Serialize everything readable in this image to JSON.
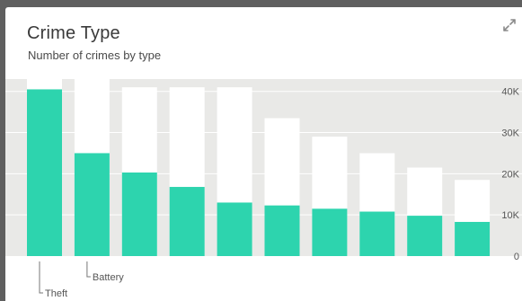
{
  "card": {
    "title": "Crime Type",
    "subtitle": "Number of crimes by type",
    "expand_icon": "expand-arrows-icon"
  },
  "chart_data": {
    "type": "bar",
    "title": "Crime Type",
    "subtitle": "Number of crimes by type",
    "categories": [
      "Theft",
      "Battery",
      "",
      "",
      "",
      "",
      "",
      "",
      "",
      ""
    ],
    "series": [
      {
        "values": [
          40500,
          25000,
          20300,
          16800,
          13000,
          12300,
          11500,
          10800,
          9800,
          8300
        ]
      },
      {
        "values": [
          43000,
          43000,
          41000,
          41000,
          41000,
          33500,
          29000,
          25000,
          21500,
          18500
        ]
      }
    ],
    "yticks": [
      0,
      10000,
      20000,
      30000,
      40000
    ],
    "ytick_labels": [
      "0",
      "10K",
      "20K",
      "30K",
      "40K"
    ],
    "ylim": [
      0,
      43000
    ],
    "grid": true,
    "colors": {
      "bar": "#2dd4ae",
      "bar_bg": "#ffffff",
      "plot_bg": "#e9e9e7",
      "grid": "#ffffff",
      "text": "#555555"
    }
  }
}
